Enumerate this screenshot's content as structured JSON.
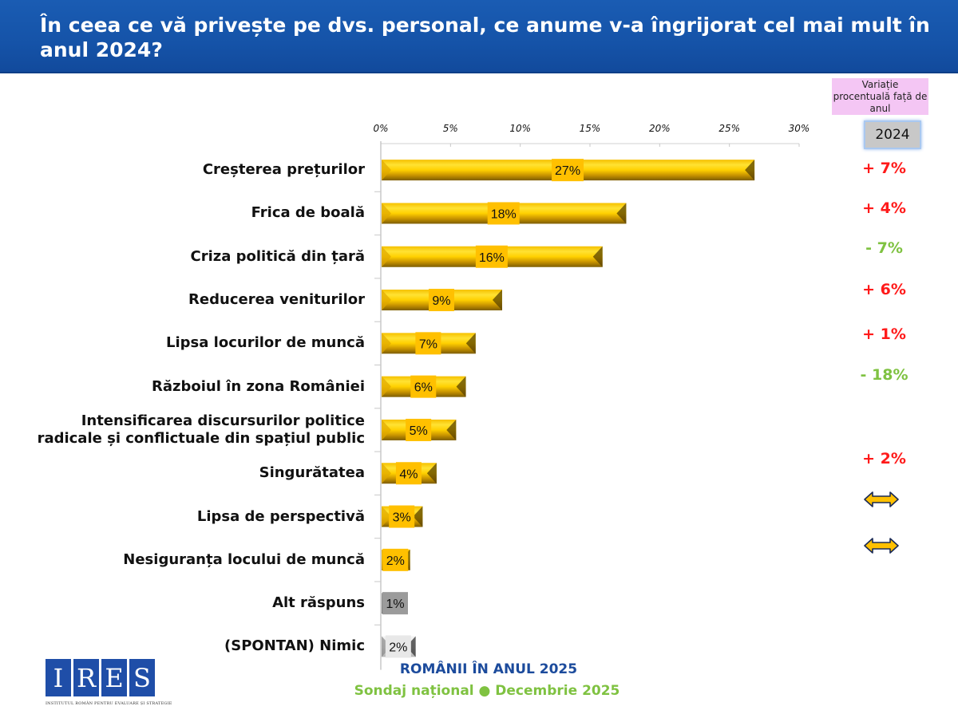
{
  "header": {
    "title": "În ceea ce vă privește pe dvs. personal, ce anume v-a îngrijorat cel mai mult în anul 2024?"
  },
  "comparison": {
    "title": "Variație procentuală față de anul",
    "year": "2024",
    "positive_color": "#ff1a1a",
    "negative_color": "#7fc241",
    "deltas": [
      {
        "category": "Creșterea prețurilor",
        "text": "+ 7%",
        "type": "up"
      },
      {
        "category": "Frica de boală",
        "text": "+ 4%",
        "type": "up"
      },
      {
        "category": "Criza politică din țară",
        "text": "- 7%",
        "type": "down"
      },
      {
        "category": "Reducerea veniturilor",
        "text": "+ 6%",
        "type": "up"
      },
      {
        "category": "Lipsa locurilor de muncă",
        "text": "+ 1%",
        "type": "up"
      },
      {
        "category": "Războiul în zona României",
        "text": "- 18%",
        "type": "down"
      },
      {
        "category": "Intensificarea discursurilor politice radicale și conflictuale din spațiul public",
        "text": "",
        "type": "none"
      },
      {
        "category": "Singurătatea",
        "text": "+ 2%",
        "type": "up"
      },
      {
        "category": "Lipsa de perspectivă",
        "text": "",
        "type": "same"
      },
      {
        "category": "Nesiguranța locului de muncă",
        "text": "",
        "type": "same"
      },
      {
        "category": "Alt răspuns",
        "text": "",
        "type": "none"
      },
      {
        "category": "(SPONTAN) Nimic",
        "text": "",
        "type": "none"
      }
    ]
  },
  "chart_data": {
    "type": "bar",
    "orientation": "horizontal",
    "title": "În ceea ce vă privește pe dvs. personal, ce anume v-a îngrijorat cel mai mult în anul 2024?",
    "xlabel": "",
    "ylabel": "",
    "xlim": [
      0,
      30
    ],
    "x_ticks": [
      "0%",
      "5%",
      "10%",
      "15%",
      "20%",
      "25%",
      "30%"
    ],
    "x_tick_values": [
      0,
      5,
      10,
      15,
      20,
      25,
      30
    ],
    "axis_position": "top",
    "grid": false,
    "categories": [
      [
        "Creșterea prețurilor"
      ],
      [
        "Frica de boală"
      ],
      [
        "Criza politică din țară"
      ],
      [
        "Reducerea veniturilor"
      ],
      [
        "Lipsa locurilor de muncă"
      ],
      [
        "Războiul în zona României"
      ],
      [
        "Intensificarea discursurilor politice",
        "radicale și conflictuale din spațiul public"
      ],
      [
        "Singurătatea"
      ],
      [
        "Lipsa de perspectivă"
      ],
      [
        "Nesiguranța locului de muncă"
      ],
      [
        "Alt răspuns"
      ],
      [
        "(SPONTAN) Nimic"
      ]
    ],
    "values": [
      26.8,
      17.6,
      15.9,
      8.7,
      6.8,
      6.1,
      5.4,
      4.0,
      3.0,
      2.1,
      1.4,
      2.5
    ],
    "data_labels": [
      "27%",
      "18%",
      "16%",
      "9%",
      "7%",
      "6%",
      "5%",
      "4%",
      "3%",
      "2%",
      "1%",
      "2%"
    ],
    "bar_styles": [
      "gold",
      "gold",
      "gold",
      "gold",
      "gold",
      "gold",
      "gold",
      "gold",
      "gold",
      "gold",
      "grey",
      "light"
    ],
    "colors": {
      "gold": "#ffcc00",
      "gold_dark": "#8a6a00",
      "grey": "#9a9a9a",
      "light": "#e6e6e6"
    }
  },
  "footer": {
    "line1": "ROMÂNII ÎN ANUL 2025",
    "line2": "Sondaj național ● Decembrie 2025",
    "logo_letters": [
      "I",
      "R",
      "E",
      "S"
    ],
    "logo_subtitle": "INSTITUTUL ROMÂN PENTRU EVALUARE ȘI STRATEGIE"
  }
}
